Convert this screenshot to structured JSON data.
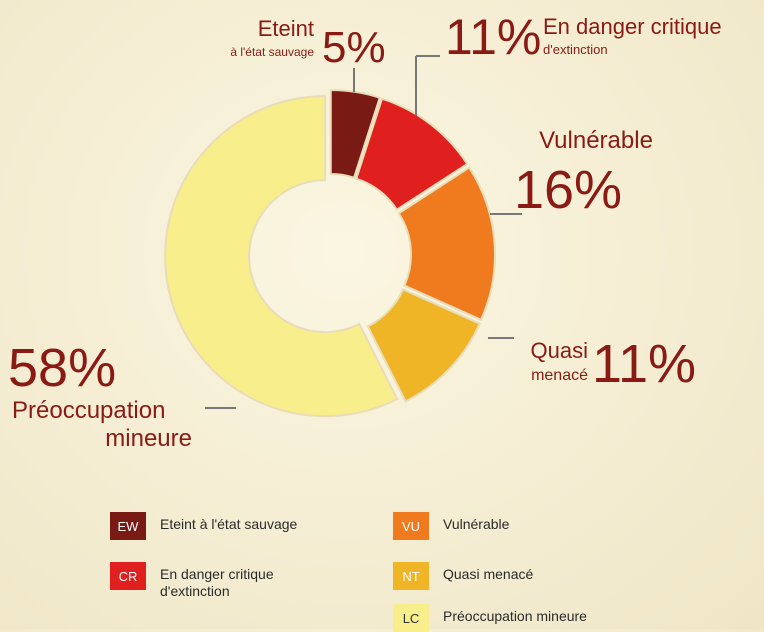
{
  "chart_data": {
    "type": "donut",
    "codes": [
      "EW",
      "CR",
      "VU",
      "NT",
      "LC"
    ],
    "categories": [
      "Eteint à l'état sauvage",
      "En danger critique d'extinction",
      "Vulnérable",
      "Quasi menacé",
      "Préoccupation mineure"
    ],
    "values": [
      5,
      11,
      16,
      11,
      58
    ],
    "value_labels": [
      "5%",
      "11%",
      "16%",
      "11%",
      "58%"
    ],
    "colors": [
      "#7a1a14",
      "#e0201e",
      "#f07a1e",
      "#f0b526",
      "#f8ee8c"
    ],
    "slice_labels": [
      [
        "Eteint",
        "à l'état sauvage"
      ],
      [
        "En danger critique",
        "d'extinction"
      ],
      [
        "Vulnérable"
      ],
      [
        "Quasi",
        "menacé"
      ],
      [
        "Préoccupation",
        "mineure"
      ]
    ]
  }
}
